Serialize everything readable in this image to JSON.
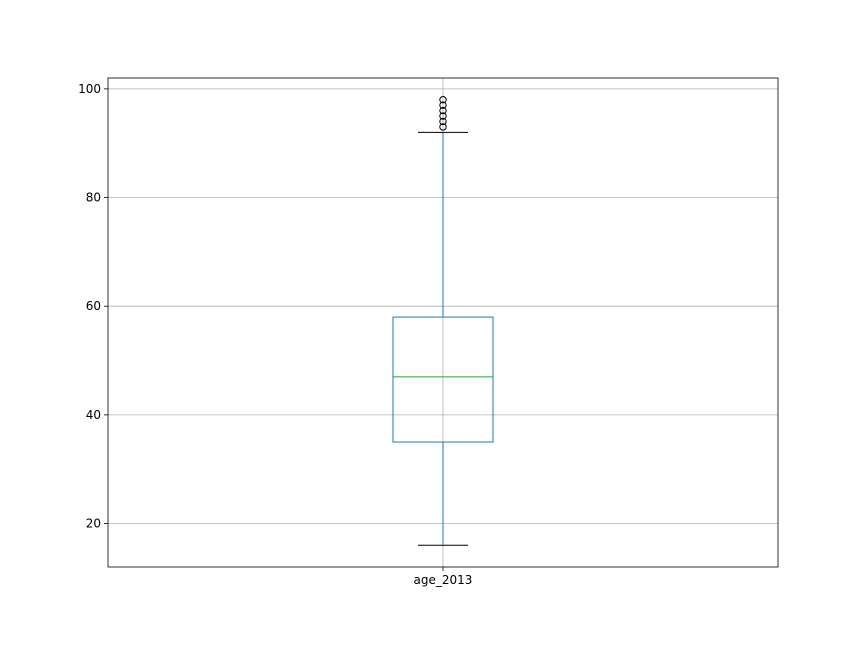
{
  "chart_data": {
    "type": "box",
    "title": "",
    "xlabel": "",
    "ylabel": "",
    "categories": [
      "age_2013"
    ],
    "ylim": [
      12,
      102
    ],
    "yticks": [
      20,
      40,
      60,
      80,
      100
    ],
    "grid": true,
    "legend": "none",
    "boxes": [
      {
        "category": "age_2013",
        "whisker_low": 16,
        "q1": 35,
        "median": 47,
        "q3": 58,
        "whisker_high": 92,
        "outliers": [
          93,
          94,
          95,
          96,
          97,
          98
        ]
      }
    ],
    "colors": {
      "box": "#1f77b4",
      "median": "#2ca02c",
      "whisker_cap": "#000000",
      "flier": "#000000",
      "grid": "#b0b0b0"
    }
  }
}
